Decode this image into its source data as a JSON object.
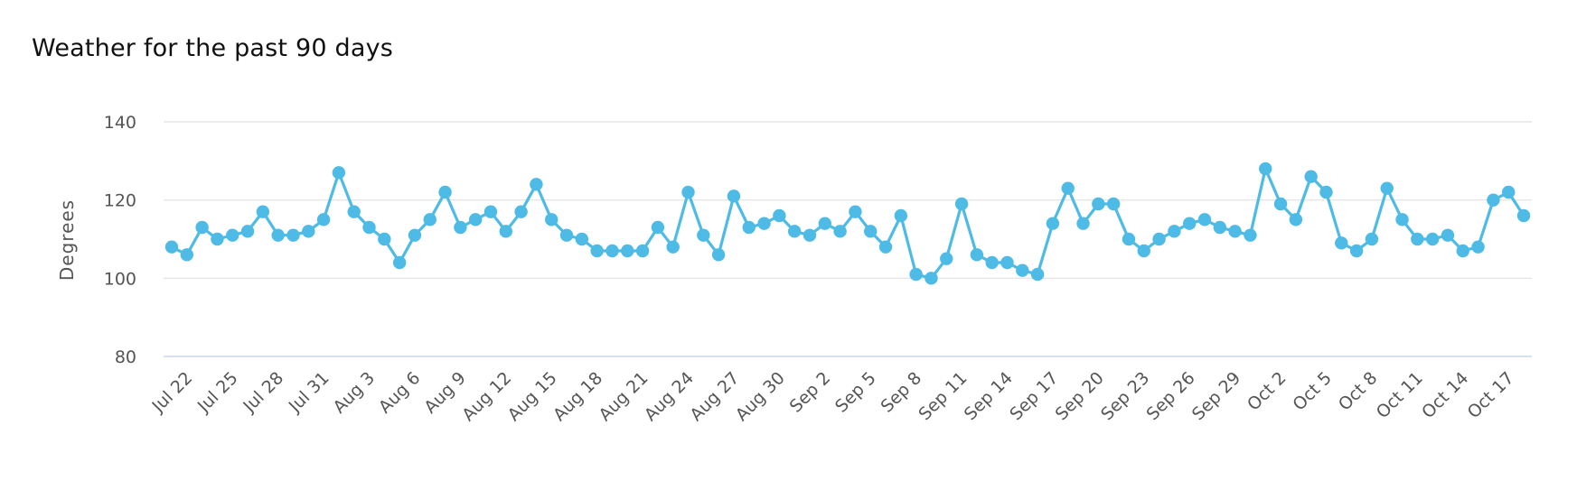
{
  "chart_data": {
    "type": "line",
    "title": "Weather for the past 90 days",
    "xlabel": "",
    "ylabel": "Degrees",
    "ylim": [
      80,
      140
    ],
    "yticks": [
      80,
      100,
      120,
      140
    ],
    "grid": true,
    "color": "#4dbbe6",
    "tick_labels": [
      "Jul 22",
      "Jul 25",
      "Jul 28",
      "Jul 31",
      "Aug 3",
      "Aug 6",
      "Aug 9",
      "Aug 12",
      "Aug 15",
      "Aug 18",
      "Aug 21",
      "Aug 24",
      "Aug 27",
      "Aug 30",
      "Sep 2",
      "Sep 5",
      "Sep 8",
      "Sep 11",
      "Sep 14",
      "Sep 17",
      "Sep 20",
      "Sep 23",
      "Sep 26",
      "Sep 29",
      "Oct 2",
      "Oct 5",
      "Oct 8",
      "Oct 11",
      "Oct 14",
      "Oct 17"
    ],
    "x": [
      "Jul 21",
      "Jul 22",
      "Jul 23",
      "Jul 24",
      "Jul 25",
      "Jul 26",
      "Jul 27",
      "Jul 28",
      "Jul 29",
      "Jul 30",
      "Jul 31",
      "Aug 1",
      "Aug 2",
      "Aug 3",
      "Aug 4",
      "Aug 5",
      "Aug 6",
      "Aug 7",
      "Aug 8",
      "Aug 9",
      "Aug 10",
      "Aug 11",
      "Aug 12",
      "Aug 13",
      "Aug 14",
      "Aug 15",
      "Aug 16",
      "Aug 17",
      "Aug 18",
      "Aug 19",
      "Aug 20",
      "Aug 21",
      "Aug 22",
      "Aug 23",
      "Aug 24",
      "Aug 25",
      "Aug 26",
      "Aug 27",
      "Aug 28",
      "Aug 29",
      "Aug 30",
      "Aug 31",
      "Sep 1",
      "Sep 2",
      "Sep 3",
      "Sep 4",
      "Sep 5",
      "Sep 6",
      "Sep 7",
      "Sep 8",
      "Sep 9",
      "Sep 10",
      "Sep 11",
      "Sep 12",
      "Sep 13",
      "Sep 14",
      "Sep 15",
      "Sep 16",
      "Sep 17",
      "Sep 18",
      "Sep 19",
      "Sep 20",
      "Sep 21",
      "Sep 22",
      "Sep 23",
      "Sep 24",
      "Sep 25",
      "Sep 26",
      "Sep 27",
      "Sep 28",
      "Sep 29",
      "Sep 30",
      "Oct 1",
      "Oct 2",
      "Oct 3",
      "Oct 4",
      "Oct 5",
      "Oct 6",
      "Oct 7",
      "Oct 8",
      "Oct 9",
      "Oct 10",
      "Oct 11",
      "Oct 12",
      "Oct 13",
      "Oct 14",
      "Oct 15",
      "Oct 16",
      "Oct 17",
      "Oct 18"
    ],
    "series": [
      {
        "values": [
          108,
          106,
          113,
          110,
          111,
          112,
          117,
          111,
          111,
          112,
          115,
          127,
          117,
          113,
          110,
          104,
          111,
          115,
          122,
          113,
          115,
          117,
          112,
          117,
          124,
          115,
          111,
          110,
          107,
          107,
          107,
          107,
          113,
          108,
          122,
          111,
          106,
          121,
          113,
          114,
          116,
          112,
          111,
          114,
          112,
          117,
          112,
          108,
          116,
          101,
          100,
          105,
          119,
          106,
          104,
          104,
          102,
          101,
          114,
          123,
          114,
          119,
          119,
          110,
          107,
          110,
          112,
          114,
          115,
          113,
          112,
          111,
          128,
          119,
          115,
          126,
          122,
          109,
          107,
          110,
          123,
          115,
          110,
          110,
          111,
          107,
          108,
          120,
          122,
          116
        ]
      }
    ]
  }
}
